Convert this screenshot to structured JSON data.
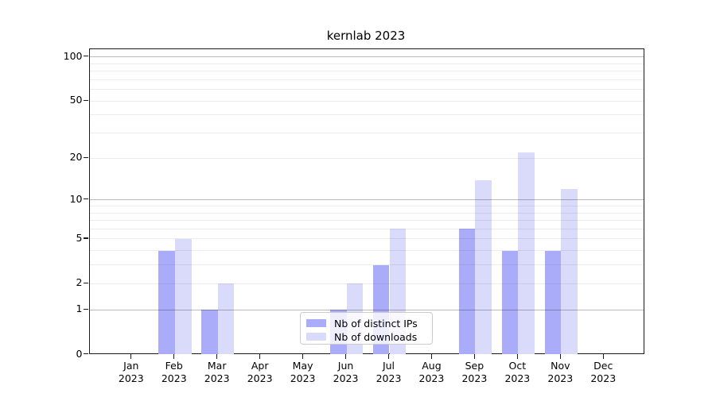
{
  "chart_data": {
    "type": "bar",
    "title": "kernlab 2023",
    "categories": [
      "Jan 2023",
      "Feb 2023",
      "Mar 2023",
      "Apr 2023",
      "May 2023",
      "Jun 2023",
      "Jul 2023",
      "Aug 2023",
      "Sep 2023",
      "Oct 2023",
      "Nov 2023",
      "Dec 2023"
    ],
    "x_tick_months": [
      "Jan",
      "Feb",
      "Mar",
      "Apr",
      "May",
      "Jun",
      "Jul",
      "Aug",
      "Sep",
      "Oct",
      "Nov",
      "Dec"
    ],
    "x_tick_year": "2023",
    "series": [
      {
        "name": "Nb of distinct IPs",
        "color": "#abacf9",
        "values": [
          0,
          4,
          1,
          0,
          0,
          1,
          3,
          0,
          6,
          4,
          4,
          0
        ]
      },
      {
        "name": "Nb of downloads",
        "color": "#dadbfa",
        "values": [
          0,
          5,
          2,
          0,
          0,
          2,
          6,
          0,
          14,
          22,
          12,
          0
        ]
      }
    ],
    "y_axis": {
      "scale": "log10(1+x)",
      "tick_values": [
        100,
        50,
        20,
        10,
        5,
        2,
        1,
        0
      ],
      "gridlines_light": [
        2,
        3,
        4,
        5,
        6,
        7,
        8,
        9,
        20,
        30,
        40,
        50,
        60,
        70,
        80,
        90
      ],
      "gridlines_dark": [
        1,
        10,
        100
      ],
      "range": [
        0,
        113
      ]
    },
    "legend": {
      "position": "lower center"
    },
    "colors": {
      "axis": "#1a1a1a",
      "background": "#ffffff",
      "bar_distinct_ips": "#abacf9",
      "bar_downloads": "#dadbfa"
    },
    "grid": "on"
  }
}
